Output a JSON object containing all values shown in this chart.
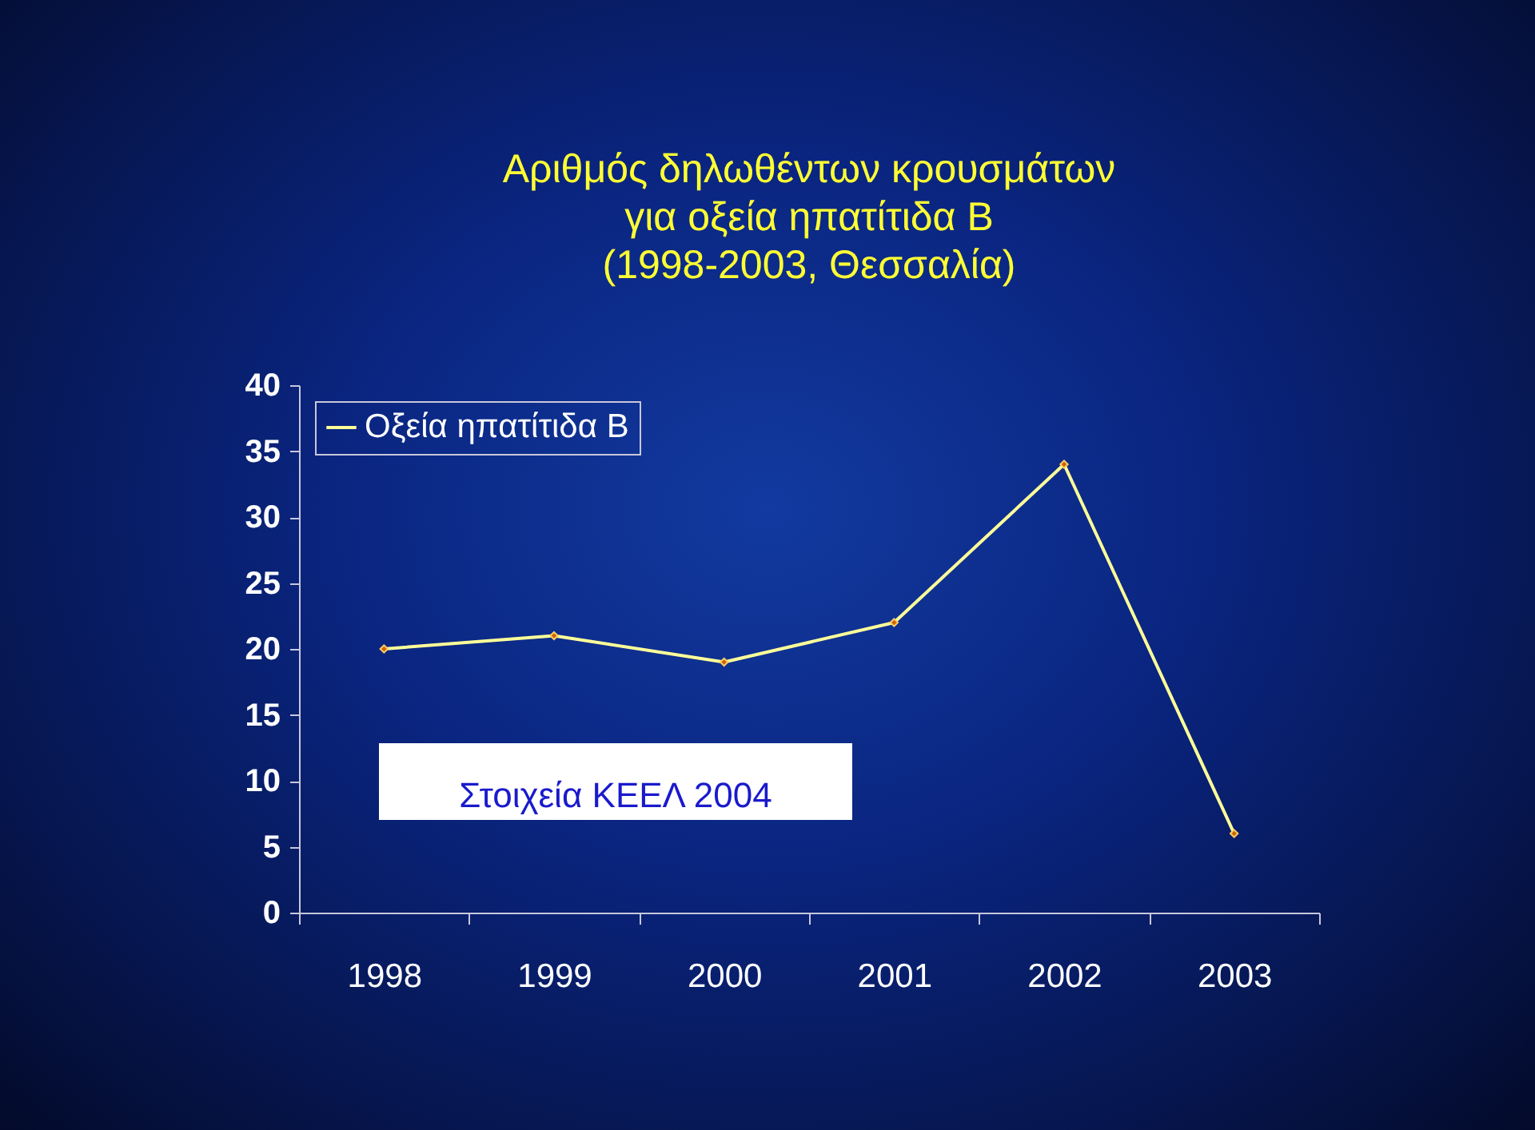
{
  "chart_data": {
    "type": "line",
    "title": "Αριθμός δηλωθέντων κρουσμάτων\nγια οξεία ηπατίτιδα Β\n(1998-2003, Θεσσαλία)",
    "categories": [
      "1998",
      "1999",
      "2000",
      "2001",
      "2002",
      "2003"
    ],
    "series": [
      {
        "name": "Οξεία ηπατίτιδα Β",
        "color": "#ffff99",
        "values": [
          20,
          21,
          19,
          22,
          34,
          6
        ]
      }
    ],
    "ylim": [
      0,
      40
    ],
    "yticks": [
      0,
      5,
      10,
      15,
      20,
      25,
      30,
      35,
      40
    ],
    "legend": "top left",
    "marker": "diamond",
    "grid": false,
    "annotations": [
      "Στοιχεία ΚΕΕΛ 2004"
    ]
  }
}
